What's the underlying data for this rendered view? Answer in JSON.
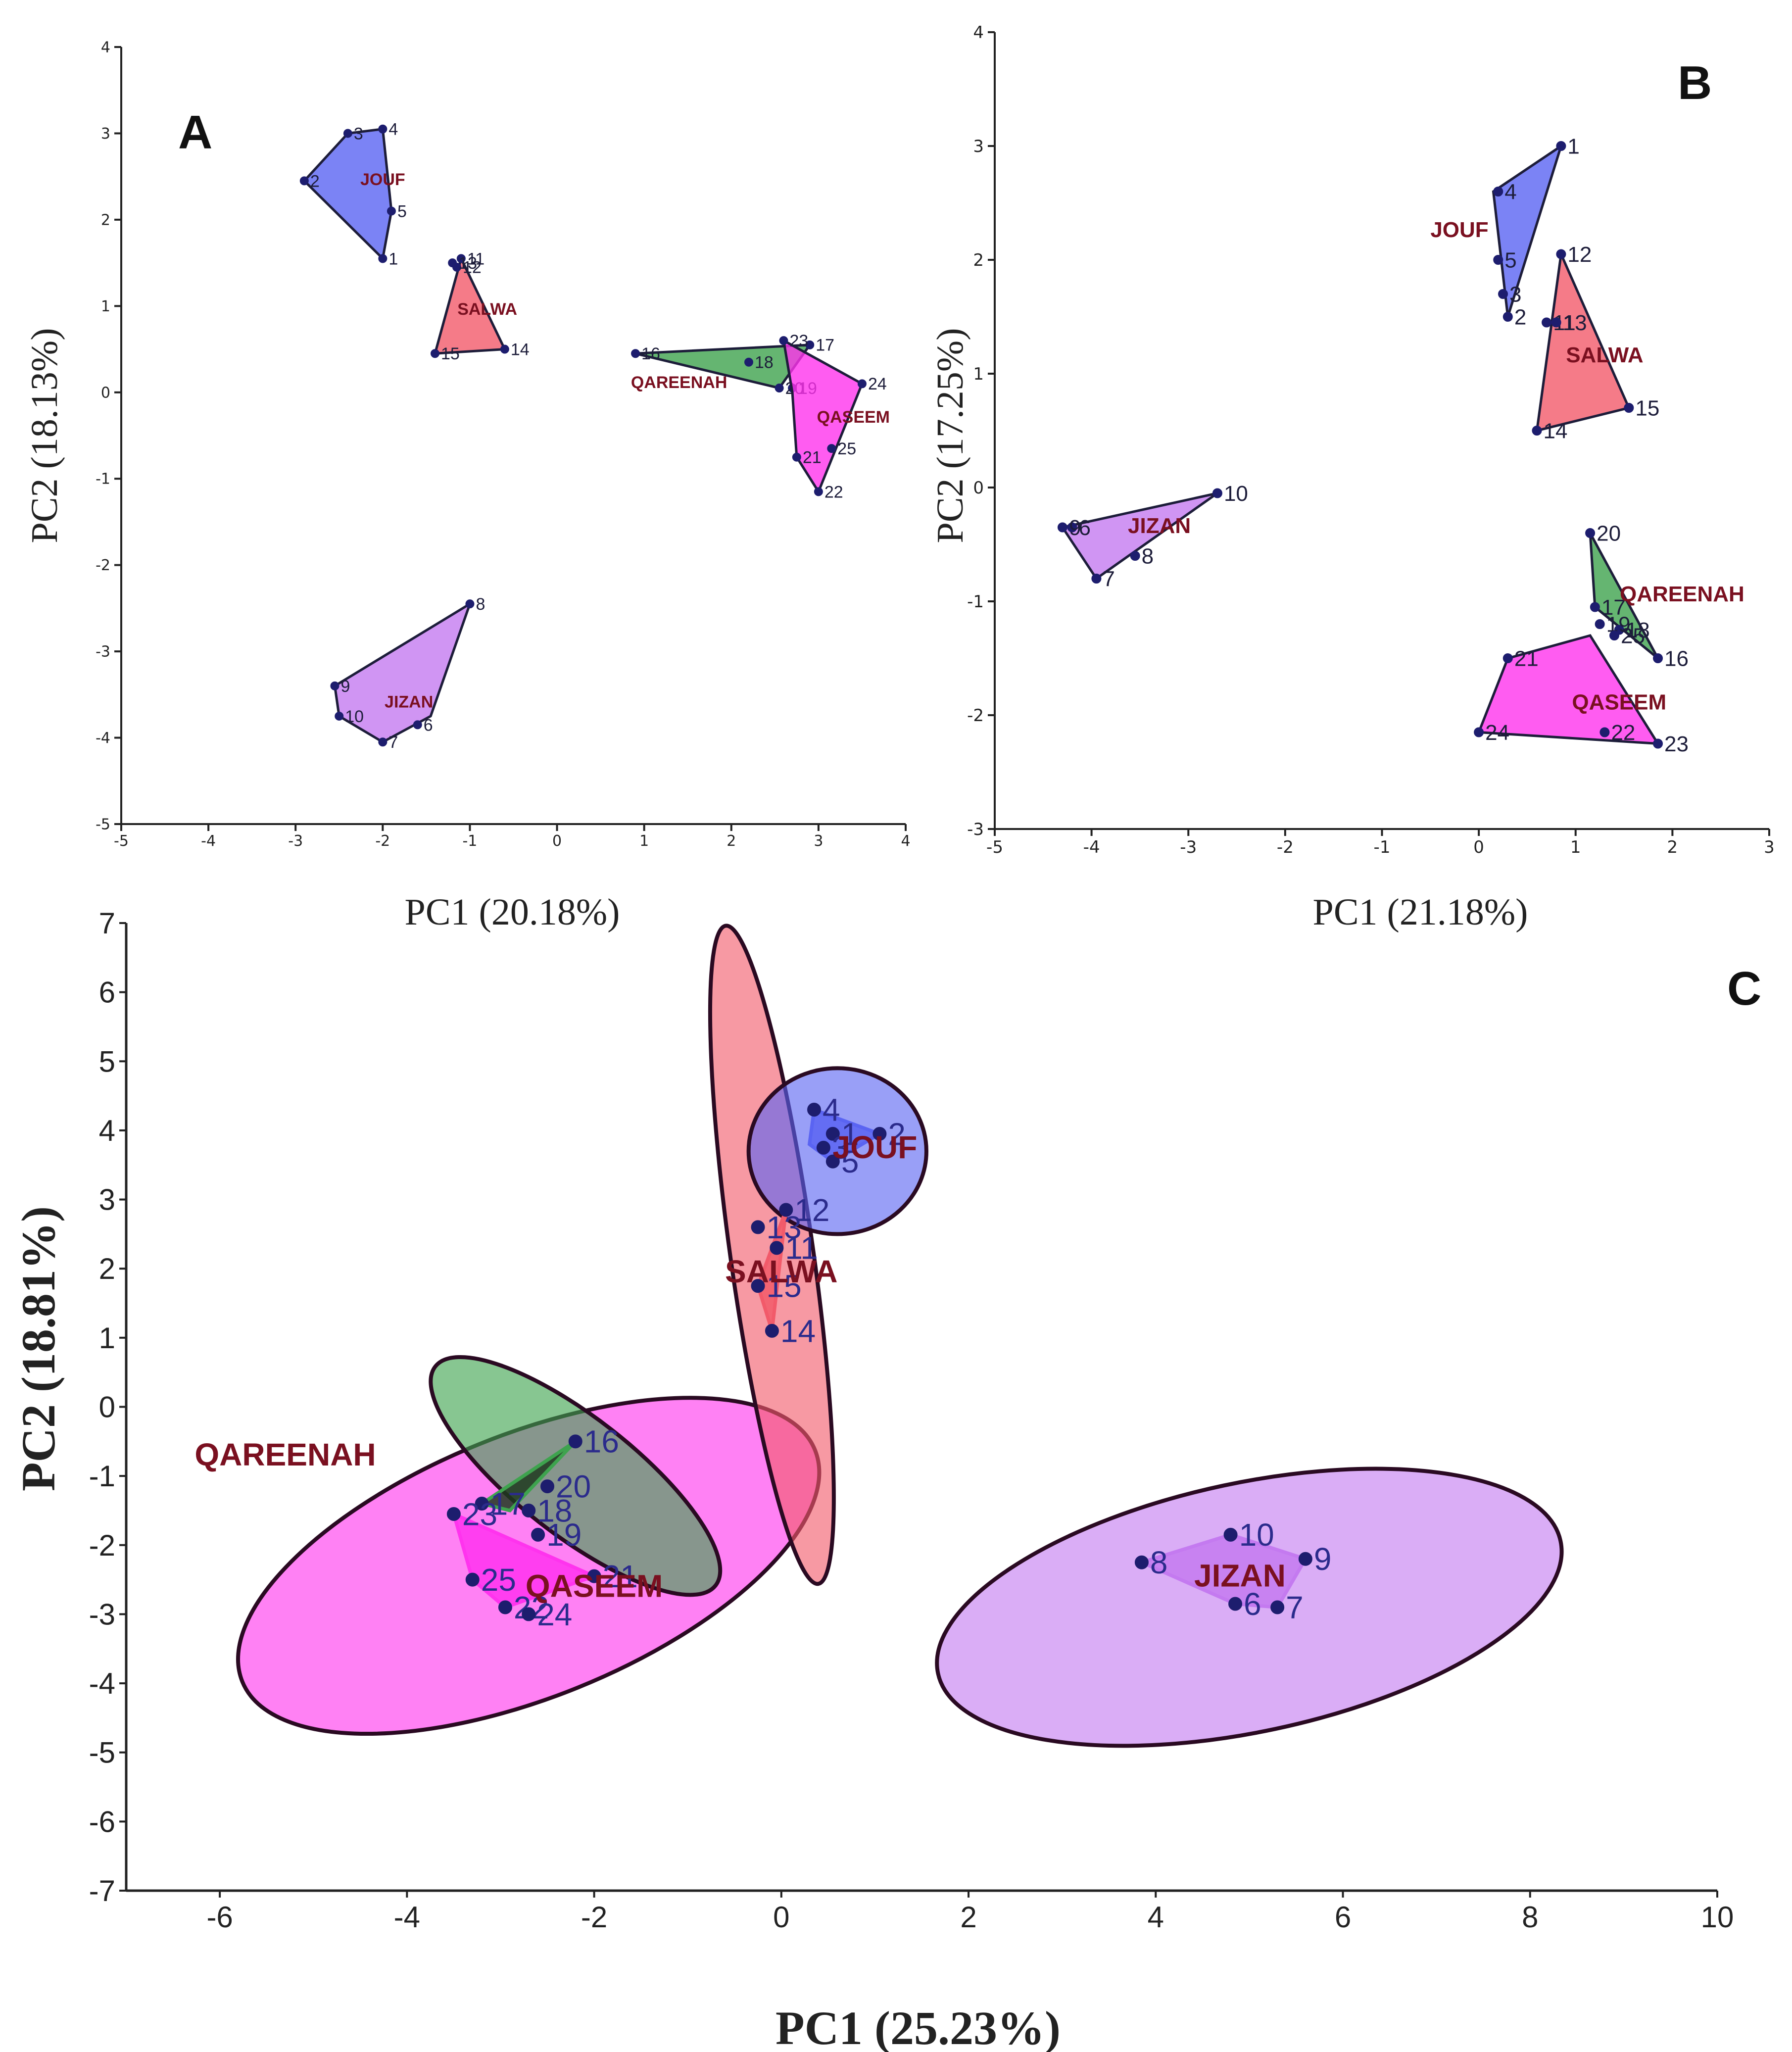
{
  "colors": {
    "JOUF": "#5a64f2",
    "SALWA": "#f25a6a",
    "QAREENAH": "#3ea34e",
    "QASEEM": "#ff33ee",
    "JIZAN": "#c47af0",
    "label_point": "#1d1d6e",
    "label_group": "#7a1020",
    "axis": "#222222"
  },
  "chart_data": [
    {
      "panel": "A",
      "type": "scatter",
      "xlabel": "PC1 (20.18%)",
      "ylabel": "PC2 (18.13%)",
      "xlim": [
        -5,
        4
      ],
      "ylim": [
        -5,
        4
      ],
      "xticks": [
        "-5",
        "-4",
        "-3",
        "-2",
        "-1",
        "0",
        "1",
        "2",
        "3",
        "4"
      ],
      "yticks": [
        "-5",
        "-4",
        "-3",
        "-2",
        "-1",
        "0",
        "1",
        "2",
        "3",
        "4"
      ],
      "grid": false,
      "groups": [
        {
          "name": "JOUF",
          "label_pos": [
            -2.0,
            2.4
          ],
          "hull": [
            [
              -2.4,
              3.0
            ],
            [
              -2.0,
              3.05
            ],
            [
              -1.9,
              2.1
            ],
            [
              -2.0,
              1.55
            ],
            [
              -2.9,
              2.45
            ]
          ],
          "points": [
            {
              "id": "1",
              "x": -2.0,
              "y": 1.55
            },
            {
              "id": "2",
              "x": -2.9,
              "y": 2.45
            },
            {
              "id": "3",
              "x": -2.4,
              "y": 3.0
            },
            {
              "id": "4",
              "x": -2.0,
              "y": 3.05
            },
            {
              "id": "5",
              "x": -1.9,
              "y": 2.1
            }
          ]
        },
        {
          "name": "SALWA",
          "label_pos": [
            -0.8,
            0.9
          ],
          "hull": [
            [
              -1.1,
              1.55
            ],
            [
              -0.6,
              0.5
            ],
            [
              -1.4,
              0.45
            ]
          ],
          "points": [
            {
              "id": "11",
              "x": -1.1,
              "y": 1.55
            },
            {
              "id": "12",
              "x": -1.15,
              "y": 1.45
            },
            {
              "id": "13",
              "x": -1.2,
              "y": 1.5
            },
            {
              "id": "14",
              "x": -0.6,
              "y": 0.5
            },
            {
              "id": "15",
              "x": -1.4,
              "y": 0.45
            }
          ]
        },
        {
          "name": "QAREENAH",
          "label_pos": [
            1.4,
            0.05
          ],
          "hull": [
            [
              0.9,
              0.45
            ],
            [
              2.9,
              0.55
            ],
            [
              2.55,
              0.05
            ]
          ],
          "points": [
            {
              "id": "16",
              "x": 0.9,
              "y": 0.45
            },
            {
              "id": "17",
              "x": 2.9,
              "y": 0.55
            },
            {
              "id": "18",
              "x": 2.2,
              "y": 0.35
            },
            {
              "id": "19",
              "x": 2.7,
              "y": 0.05
            },
            {
              "id": "20",
              "x": 2.55,
              "y": 0.05
            }
          ]
        },
        {
          "name": "QASEEM",
          "label_pos": [
            3.4,
            -0.35
          ],
          "hull": [
            [
              2.6,
              0.6
            ],
            [
              3.5,
              0.1
            ],
            [
              3.0,
              -1.15
            ],
            [
              2.75,
              -0.75
            ],
            [
              2.7,
              0.0
            ]
          ],
          "points": [
            {
              "id": "21",
              "x": 2.75,
              "y": -0.75
            },
            {
              "id": "22",
              "x": 3.0,
              "y": -1.15
            },
            {
              "id": "23",
              "x": 2.6,
              "y": 0.6
            },
            {
              "id": "24",
              "x": 3.5,
              "y": 0.1
            },
            {
              "id": "25",
              "x": 3.15,
              "y": -0.65
            }
          ]
        },
        {
          "name": "JIZAN",
          "label_pos": [
            -1.7,
            -3.65
          ],
          "hull": [
            [
              -1.0,
              -2.45
            ],
            [
              -1.45,
              -3.75
            ],
            [
              -2.0,
              -4.05
            ],
            [
              -2.5,
              -3.75
            ],
            [
              -2.55,
              -3.4
            ]
          ],
          "points": [
            {
              "id": "6",
              "x": -1.6,
              "y": -3.85
            },
            {
              "id": "7",
              "x": -2.0,
              "y": -4.05
            },
            {
              "id": "8",
              "x": -1.0,
              "y": -2.45
            },
            {
              "id": "9",
              "x": -2.55,
              "y": -3.4
            },
            {
              "id": "10",
              "x": -2.5,
              "y": -3.75
            }
          ]
        }
      ]
    },
    {
      "panel": "B",
      "type": "scatter",
      "xlabel": "PC1 (21.18%)",
      "ylabel": "PC2 (17.25%)",
      "xlim": [
        -5,
        3
      ],
      "ylim": [
        -3,
        4
      ],
      "xticks": [
        "-5",
        "-4",
        "-3",
        "-2",
        "-1",
        "0",
        "1",
        "2",
        "3"
      ],
      "yticks": [
        "-3",
        "-2",
        "-1",
        "0",
        "1",
        "2",
        "3",
        "4"
      ],
      "grid": false,
      "groups": [
        {
          "name": "JOUF",
          "label_pos": [
            -0.2,
            2.2
          ],
          "hull": [
            [
              0.15,
              2.6
            ],
            [
              0.85,
              3.0
            ],
            [
              0.3,
              1.5
            ]
          ],
          "points": [
            {
              "id": "1",
              "x": 0.85,
              "y": 3.0
            },
            {
              "id": "2",
              "x": 0.3,
              "y": 1.5
            },
            {
              "id": "3",
              "x": 0.25,
              "y": 1.7
            },
            {
              "id": "4",
              "x": 0.2,
              "y": 2.6
            },
            {
              "id": "5",
              "x": 0.2,
              "y": 2.0
            }
          ]
        },
        {
          "name": "SALWA",
          "label_pos": [
            1.3,
            1.1
          ],
          "hull": [
            [
              0.85,
              2.05
            ],
            [
              1.55,
              0.7
            ],
            [
              0.6,
              0.5
            ]
          ],
          "points": [
            {
              "id": "11",
              "x": 0.7,
              "y": 1.45
            },
            {
              "id": "12",
              "x": 0.85,
              "y": 2.05
            },
            {
              "id": "13",
              "x": 0.8,
              "y": 1.45
            },
            {
              "id": "14",
              "x": 0.6,
              "y": 0.5
            },
            {
              "id": "15",
              "x": 1.55,
              "y": 0.7
            }
          ]
        },
        {
          "name": "QAREENAH",
          "label_pos": [
            2.1,
            -1.0
          ],
          "hull": [
            [
              1.15,
              -0.4
            ],
            [
              1.85,
              -1.5
            ],
            [
              1.2,
              -1.05
            ]
          ],
          "points": [
            {
              "id": "16",
              "x": 1.85,
              "y": -1.5
            },
            {
              "id": "17",
              "x": 1.2,
              "y": -1.05
            },
            {
              "id": "18",
              "x": 1.45,
              "y": -1.25
            },
            {
              "id": "19",
              "x": 1.25,
              "y": -1.2
            },
            {
              "id": "20",
              "x": 1.15,
              "y": -0.4
            }
          ]
        },
        {
          "name": "QASEEM",
          "label_pos": [
            1.45,
            -1.95
          ],
          "hull": [
            [
              0.3,
              -1.5
            ],
            [
              1.15,
              -1.3
            ],
            [
              1.85,
              -2.25
            ],
            [
              0.0,
              -2.15
            ]
          ],
          "points": [
            {
              "id": "21",
              "x": 0.3,
              "y": -1.5
            },
            {
              "id": "22",
              "x": 1.3,
              "y": -2.15
            },
            {
              "id": "23",
              "x": 1.85,
              "y": -2.25
            },
            {
              "id": "24",
              "x": 0.0,
              "y": -2.15
            },
            {
              "id": "25",
              "x": 1.4,
              "y": -1.3
            }
          ]
        },
        {
          "name": "JIZAN",
          "label_pos": [
            -3.3,
            -0.4
          ],
          "hull": [
            [
              -2.7,
              -0.05
            ],
            [
              -3.95,
              -0.8
            ],
            [
              -4.3,
              -0.35
            ]
          ],
          "points": [
            {
              "id": "6",
              "x": -4.2,
              "y": -0.35
            },
            {
              "id": "7",
              "x": -3.95,
              "y": -0.8
            },
            {
              "id": "8",
              "x": -3.55,
              "y": -0.6
            },
            {
              "id": "9",
              "x": -4.3,
              "y": -0.35
            },
            {
              "id": "10",
              "x": -2.7,
              "y": -0.05
            }
          ]
        }
      ]
    },
    {
      "panel": "C",
      "type": "scatter",
      "xlabel": "PC1 (25.23%)",
      "ylabel": "PC2 (18.81%)",
      "xlim": [
        -7,
        10
      ],
      "ylim": [
        -7,
        7
      ],
      "xticks": [
        "-6",
        "-4",
        "-2",
        "0",
        "2",
        "4",
        "6",
        "8",
        "10"
      ],
      "yticks": [
        "-7",
        "-6",
        "-5",
        "-4",
        "-3",
        "-2",
        "-1",
        "0",
        "1",
        "2",
        "3",
        "4",
        "5",
        "6",
        "7"
      ],
      "grid": false,
      "ellipses": [
        {
          "name": "QASEEM",
          "cx": -2.7,
          "cy": -2.3,
          "rx": 3.3,
          "ry": 1.9,
          "angle": -22
        },
        {
          "name": "QAREENAH",
          "cx": -2.2,
          "cy": -1.0,
          "rx": 1.9,
          "ry": 0.85,
          "angle": 38
        },
        {
          "name": "SALWA",
          "cx": -0.1,
          "cy": 2.2,
          "rx": 3.55,
          "ry": 0.6,
          "angle": 82
        },
        {
          "name": "JOUF",
          "cx": 0.6,
          "cy": 3.7,
          "rx": 0.95,
          "ry": 1.2,
          "angle": 0
        },
        {
          "name": "JIZAN",
          "cx": 5.0,
          "cy": -2.9,
          "rx": 3.4,
          "ry": 1.8,
          "angle": -12
        }
      ],
      "groups": [
        {
          "name": "JOUF",
          "label_pos": [
            1.0,
            3.6
          ],
          "hull": [
            [
              0.35,
              4.3
            ],
            [
              1.05,
              3.95
            ],
            [
              0.55,
              3.55
            ],
            [
              0.3,
              3.8
            ]
          ],
          "points": [
            {
              "id": "1",
              "x": 0.55,
              "y": 3.95
            },
            {
              "id": "2",
              "x": 1.05,
              "y": 3.95
            },
            {
              "id": "3",
              "x": 0.45,
              "y": 3.75
            },
            {
              "id": "4",
              "x": 0.35,
              "y": 4.3
            },
            {
              "id": "5",
              "x": 0.55,
              "y": 3.55
            }
          ]
        },
        {
          "name": "SALWA",
          "label_pos": [
            0.0,
            1.8
          ],
          "hull": [
            [
              0.05,
              2.85
            ],
            [
              -0.1,
              1.1
            ],
            [
              -0.25,
              1.75
            ]
          ],
          "points": [
            {
              "id": "11",
              "x": -0.05,
              "y": 2.3
            },
            {
              "id": "12",
              "x": 0.05,
              "y": 2.85
            },
            {
              "id": "13",
              "x": -0.25,
              "y": 2.6
            },
            {
              "id": "14",
              "x": -0.1,
              "y": 1.1
            },
            {
              "id": "15",
              "x": -0.25,
              "y": 1.75
            }
          ]
        },
        {
          "name": "QAREENAH",
          "label_pos": [
            -5.3,
            -0.85
          ],
          "hull": [
            [
              -2.2,
              -0.5
            ],
            [
              -2.9,
              -1.5
            ],
            [
              -3.2,
              -1.4
            ]
          ],
          "points": [
            {
              "id": "16",
              "x": -2.2,
              "y": -0.5
            },
            {
              "id": "17",
              "x": -3.2,
              "y": -1.4
            },
            {
              "id": "18",
              "x": -2.7,
              "y": -1.5
            },
            {
              "id": "19",
              "x": -2.6,
              "y": -1.85
            },
            {
              "id": "20",
              "x": -2.5,
              "y": -1.15
            }
          ]
        },
        {
          "name": "QASEEM",
          "label_pos": [
            -2.0,
            -2.75
          ],
          "hull": [
            [
              -3.5,
              -1.55
            ],
            [
              -2.0,
              -2.45
            ],
            [
              -2.95,
              -2.9
            ],
            [
              -3.3,
              -2.5
            ]
          ],
          "points": [
            {
              "id": "21",
              "x": -2.0,
              "y": -2.45
            },
            {
              "id": "22",
              "x": -2.95,
              "y": -2.9
            },
            {
              "id": "23",
              "x": -3.5,
              "y": -1.55
            },
            {
              "id": "24",
              "x": -2.7,
              "y": -3.0
            },
            {
              "id": "25",
              "x": -3.3,
              "y": -2.5
            }
          ]
        },
        {
          "name": "JIZAN",
          "label_pos": [
            4.9,
            -2.6
          ],
          "hull": [
            [
              4.8,
              -1.85
            ],
            [
              5.6,
              -2.2
            ],
            [
              5.3,
              -2.9
            ],
            [
              4.85,
              -2.85
            ],
            [
              3.85,
              -2.25
            ]
          ],
          "points": [
            {
              "id": "6",
              "x": 4.85,
              "y": -2.85
            },
            {
              "id": "7",
              "x": 5.3,
              "y": -2.9
            },
            {
              "id": "8",
              "x": 3.85,
              "y": -2.25
            },
            {
              "id": "9",
              "x": 5.6,
              "y": -2.2
            },
            {
              "id": "10",
              "x": 4.8,
              "y": -1.85
            }
          ]
        }
      ]
    }
  ]
}
